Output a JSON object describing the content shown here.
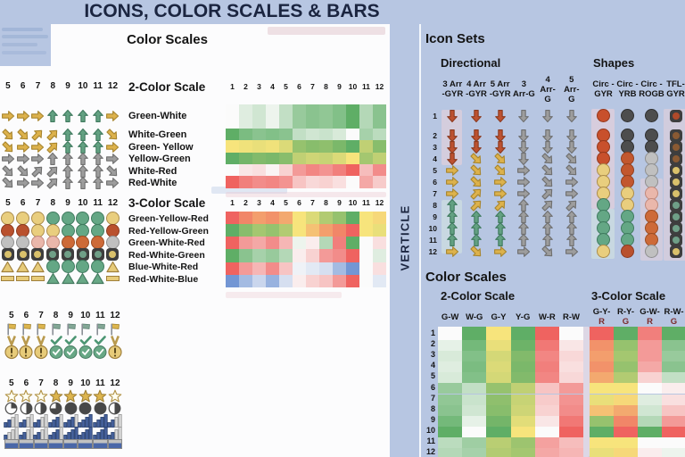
{
  "title": "ICONS, COLOR SCALES & BARS",
  "divider_label": "VERTICLE",
  "scale_stops": {
    "G": "#5fae66",
    "W": "#fbfbfb",
    "Y": "#f7e47c",
    "R": "#ef6360",
    "B": "#7396d4"
  },
  "left": {
    "heading": "Color Scales",
    "icon_numbers": [
      "5",
      "6",
      "7",
      "8",
      "9",
      "10",
      "11",
      "12"
    ],
    "grid_numbers": [
      "1",
      "2",
      "3",
      "4",
      "5",
      "6",
      "7",
      "8",
      "9",
      "10",
      "11",
      "12"
    ],
    "two_color": {
      "heading": "2-Color Scale",
      "rows": [
        {
          "label": "Green-White",
          "scale": "WG",
          "values": [
            1,
            3,
            4,
            2,
            5,
            8,
            9,
            8.5,
            9.5,
            12,
            6,
            9
          ],
          "icons": [
            "aY:r",
            "aY:r",
            "aY:r",
            "aG:u",
            "aG:u",
            "aG:u",
            "aG:u",
            "aY:r"
          ]
        },
        {
          "label": "White-Green",
          "scale": "GW",
          "values": [
            1,
            3,
            4,
            3.5,
            4,
            8,
            9,
            8.5,
            9.5,
            12,
            6,
            7.5
          ],
          "icons": [
            "aY:dr",
            "aY:dr",
            "aY:ur",
            "aY:ur",
            "aG:u",
            "aG:u",
            "aG:u",
            "aY:dr"
          ]
        },
        {
          "label": "Green- Yellow",
          "scale": "YG",
          "values": [
            1,
            1.5,
            2,
            1.5,
            3,
            8,
            9,
            8.5,
            10,
            12,
            5,
            9
          ],
          "icons": [
            "aY:dr",
            "aY:r",
            "aY:r",
            "aY:ur",
            "aG:u",
            "aG:u",
            "aG:u",
            "aY:r"
          ]
        },
        {
          "label": "Yellow-Green",
          "scale": "GY",
          "values": [
            1,
            2.5,
            3.5,
            3,
            4,
            8,
            9,
            8.5,
            10,
            12,
            6,
            8
          ],
          "icons": [
            "aN:r",
            "aN:r",
            "aN:r",
            "aN:u",
            "aN:u",
            "aN:u",
            "aN:u",
            "aN:r"
          ]
        },
        {
          "label": "White-Red",
          "scale": "WR",
          "values": [
            1,
            2.5,
            3,
            1.5,
            4,
            8,
            9.5,
            8.5,
            10,
            12,
            5.5,
            9
          ],
          "icons": [
            "aN:dr",
            "aN:dr",
            "aN:ur",
            "aN:ur",
            "aN:u",
            "aN:u",
            "aN:u",
            "aN:dr"
          ]
        },
        {
          "label": "Red-White",
          "scale": "RW",
          "values": [
            1,
            3,
            4,
            3.5,
            4.5,
            8,
            9.5,
            9,
            10,
            12,
            6,
            8.5
          ],
          "icons": [
            "aN:dr",
            "aN:r",
            "aN:r",
            "aN:ur",
            "aN:u",
            "aN:u",
            "aN:u",
            "aN:r"
          ]
        }
      ]
    },
    "three_color": {
      "heading": "3-Color Scale",
      "rows": [
        {
          "label": "Green-Yellow-Red",
          "scale": "RYG",
          "values": [
            1,
            2.5,
            3.5,
            3,
            4,
            6.5,
            7.5,
            9,
            10,
            12,
            6.5,
            6
          ],
          "icons": [
            "cY",
            "cY",
            "cY",
            "cG",
            "cG",
            "cG",
            "cG",
            "cY"
          ]
        },
        {
          "label": "Red-Yellow-Green",
          "scale": "GYR",
          "values": [
            1,
            2.5,
            3.5,
            3,
            4,
            6.5,
            8,
            9.5,
            10.5,
            12,
            6.5,
            6
          ],
          "icons": [
            "cR",
            "cR",
            "cY",
            "cY",
            "cG",
            "cG",
            "cG",
            "cR"
          ]
        },
        {
          "label": "Green-White-Red",
          "scale": "RWG",
          "values": [
            1,
            3,
            3.5,
            2.5,
            4,
            7,
            6,
            9,
            2,
            12,
            6.5,
            5.5
          ],
          "icons": [
            "cS",
            "cS",
            "cP",
            "cP",
            "cO",
            "cO",
            "cO",
            "cS"
          ]
        },
        {
          "label": "Red-White-Green",
          "scale": "GWR",
          "values": [
            1,
            2.5,
            3.5,
            3,
            4,
            7,
            8,
            10,
            10.5,
            12,
            6.5,
            5.5
          ],
          "icons": [
            "tY",
            "tY",
            "tY",
            "tG",
            "tG",
            "tG",
            "tG",
            "tY"
          ]
        },
        {
          "label": "Blue-White-Red",
          "scale": "RWB",
          "values": [
            1,
            3,
            4,
            2.5,
            4.5,
            7,
            7.5,
            8,
            10,
            12,
            6.5,
            5.5
          ],
          "icons": [
            "vY",
            "vY",
            "vY",
            "cG",
            "cG",
            "cG",
            "cG",
            "vY"
          ]
        },
        {
          "label": "Red-White-Blue",
          "scale": "BWR",
          "values": [
            1,
            3,
            4.5,
            2.5,
            5,
            7,
            8,
            8.5,
            10,
            12,
            6.5,
            5.5
          ],
          "icons": [
            "dY",
            "dY",
            "dY",
            "vG",
            "vG",
            "vG",
            "vG",
            "dY"
          ]
        }
      ]
    },
    "flags_block": {
      "numbers": [
        "5",
        "6",
        "7",
        "8",
        "9",
        "10",
        "11",
        "12"
      ],
      "flag_icons": [
        "fY",
        "fY",
        "fY",
        "fG",
        "fG",
        "fG",
        "fG",
        "fY"
      ],
      "medal_icons": [
        "m",
        "m",
        "m",
        "k",
        "k",
        "k",
        "k",
        "m"
      ]
    },
    "stars_block": {
      "numbers": [
        "5",
        "6",
        "7",
        "8",
        "9",
        "10",
        "11",
        "12"
      ],
      "star_icons": [
        "sO",
        "sO",
        "sO",
        "sF",
        "sF",
        "sF",
        "sF",
        "sO"
      ],
      "pie_icons": [
        "p1",
        "p2",
        "p2",
        "p3",
        "p4",
        "p4",
        "p4",
        "p2"
      ],
      "bars_rows": [
        [
          "b2",
          "b2",
          "b2",
          "b3",
          "b3",
          "b4",
          "b4",
          "b2"
        ],
        [
          "b1",
          "b2",
          "b2",
          "b3",
          "b4",
          "b4",
          "b4",
          "b2"
        ]
      ],
      "block_icons": [
        "x",
        "x",
        "x",
        "x",
        "x",
        "x",
        "x",
        "x"
      ]
    }
  },
  "right": {
    "heading": "Icon Sets",
    "directional_heading": "Directional",
    "shapes_heading": "Shapes",
    "row_numbers": [
      "1",
      "2",
      "3",
      "4",
      "5",
      "6",
      "7",
      "8",
      "9",
      "10",
      "11",
      "12"
    ],
    "directional_columns": [
      {
        "header": [
          "3 Arr",
          "-GYR"
        ],
        "icons": [
          "aR:d",
          "aR:d",
          "aR:d",
          "aR:d",
          "aY:r",
          "aY:r",
          "aY:r",
          "aG:u",
          "aG:u",
          "aG:u",
          "aG:u",
          "aY:r"
        ]
      },
      {
        "header": [
          "4 Arr",
          "-GYR"
        ],
        "icons": [
          "aR:d",
          "aR:d",
          "aR:d",
          "aY:dr",
          "aY:dr",
          "aY:dr",
          "aY:ur",
          "aY:ur",
          "aG:u",
          "aG:u",
          "aG:u",
          "aY:dr"
        ]
      },
      {
        "header": [
          "5 Arr",
          "-GYR"
        ],
        "icons": [
          "aR:d",
          "aR:d",
          "aR:d",
          "aY:dr",
          "aY:dr",
          "aY:r",
          "aY:r",
          "aY:ur",
          "aG:u",
          "aG:u",
          "aG:u",
          "aY:r"
        ]
      },
      {
        "header": [
          "3",
          "Arr-G"
        ],
        "icons": [
          "aN:d",
          "aN:d",
          "aN:d",
          "aN:d",
          "aN:r",
          "aN:r",
          "aN:r",
          "aN:u",
          "aN:u",
          "aN:u",
          "aN:u",
          "aN:r"
        ]
      },
      {
        "header": [
          "4",
          "Arr-",
          "G"
        ],
        "icons": [
          "aN:d",
          "aN:d",
          "aN:d",
          "aN:dr",
          "aN:dr",
          "aN:dr",
          "aN:ur",
          "aN:ur",
          "aN:u",
          "aN:u",
          "aN:u",
          "aN:dr"
        ]
      },
      {
        "header": [
          "5",
          "Arr-",
          "G"
        ],
        "icons": [
          "aN:d",
          "aN:d",
          "aN:d",
          "aN:dr",
          "aN:dr",
          "aN:r",
          "aN:r",
          "aN:ur",
          "aN:u",
          "aN:u",
          "aN:u",
          "aN:r"
        ]
      }
    ],
    "shapes_columns": [
      {
        "header": [
          "Circ -",
          "GYR"
        ],
        "icons": [
          "cT",
          "cT",
          "cT",
          "cT",
          "cY",
          "cY",
          "cY",
          "cG",
          "cG",
          "cG",
          "cG",
          "cY"
        ]
      },
      {
        "header": [
          "Circ -",
          "YRB"
        ],
        "icons": [
          "cK",
          "cK",
          "cK",
          "cQ",
          "cQ",
          "cQ",
          "cY",
          "cY",
          "cG",
          "cG",
          "cG",
          "cR"
        ]
      },
      {
        "header": [
          "Circ -",
          "ROGB"
        ],
        "icons": [
          "cK",
          "cK",
          "cK",
          "cS",
          "cS",
          "cS",
          "cP",
          "cP",
          "cO",
          "cO",
          "cO",
          "cS"
        ]
      },
      {
        "header": [
          "TFL-",
          "GYR"
        ],
        "icons": [
          "tR",
          "tB",
          "tB",
          "tB",
          "tY",
          "tY",
          "tY",
          "tG",
          "tG",
          "tG",
          "tG",
          "tY"
        ]
      }
    ],
    "color_scales_heading": "Color Scales",
    "scale2": {
      "heading": "2-Color Scale",
      "columns": [
        {
          "header": "G-W",
          "scale": "WG",
          "values": [
            1,
            2.5,
            3.5,
            3,
            3.5,
            8,
            8.5,
            9,
            10.5,
            12,
            5.5,
            6
          ]
        },
        {
          "header": "W-G",
          "scale": "GW",
          "values": [
            1,
            2.5,
            3.5,
            3,
            3.5,
            8,
            8.5,
            9,
            10.5,
            12,
            5.5,
            6
          ]
        },
        {
          "header": "G-Y",
          "scale": "YG",
          "values": [
            1,
            2,
            3.5,
            3,
            3.5,
            8,
            8.5,
            9,
            10.5,
            12,
            5.5,
            6
          ]
        },
        {
          "header": "Y-G",
          "scale": "GY",
          "values": [
            1,
            2,
            3.5,
            3,
            3.5,
            8,
            8.5,
            9,
            10.5,
            12,
            5.5,
            6
          ]
        },
        {
          "header": "W-R",
          "scale": "RW",
          "values": [
            1,
            2.5,
            3.5,
            3,
            3.5,
            8,
            8.5,
            9,
            10.5,
            12,
            5.5,
            6
          ]
        },
        {
          "header": "R-W",
          "scale": "WR",
          "values": [
            1,
            2.5,
            3.5,
            3,
            3.5,
            8,
            8.5,
            9,
            10.5,
            12,
            5.5,
            6
          ]
        }
      ]
    },
    "scale3": {
      "heading": "3-Color Scale",
      "columns": [
        {
          "header": [
            "G-Y-",
            "R"
          ],
          "scale": "RYG",
          "values": [
            1,
            3,
            3.5,
            3,
            4,
            6.5,
            7,
            5,
            10,
            12,
            6.5,
            7
          ]
        },
        {
          "header": [
            "R-Y-",
            "G"
          ],
          "scale": "GYR",
          "values": [
            1,
            3,
            3.5,
            3,
            4,
            6.5,
            7,
            9,
            10.5,
            12,
            6.5,
            7
          ]
        },
        {
          "header": [
            "G-W-",
            "R"
          ],
          "scale": "RWG",
          "values": [
            2,
            3,
            3,
            3.5,
            5,
            6.5,
            7.5,
            8,
            9,
            12,
            6.5,
            6
          ]
        },
        {
          "header": [
            "R-W-",
            "G"
          ],
          "scale": "GWR",
          "values": [
            1,
            2.5,
            3,
            2.5,
            4.5,
            7,
            7.5,
            8.5,
            10,
            12,
            6.5,
            6
          ]
        }
      ]
    },
    "scale_row_numbers": [
      "1",
      "2",
      "3",
      "4",
      "5",
      "6",
      "7",
      "8",
      "9",
      "10",
      "11",
      "12"
    ]
  }
}
